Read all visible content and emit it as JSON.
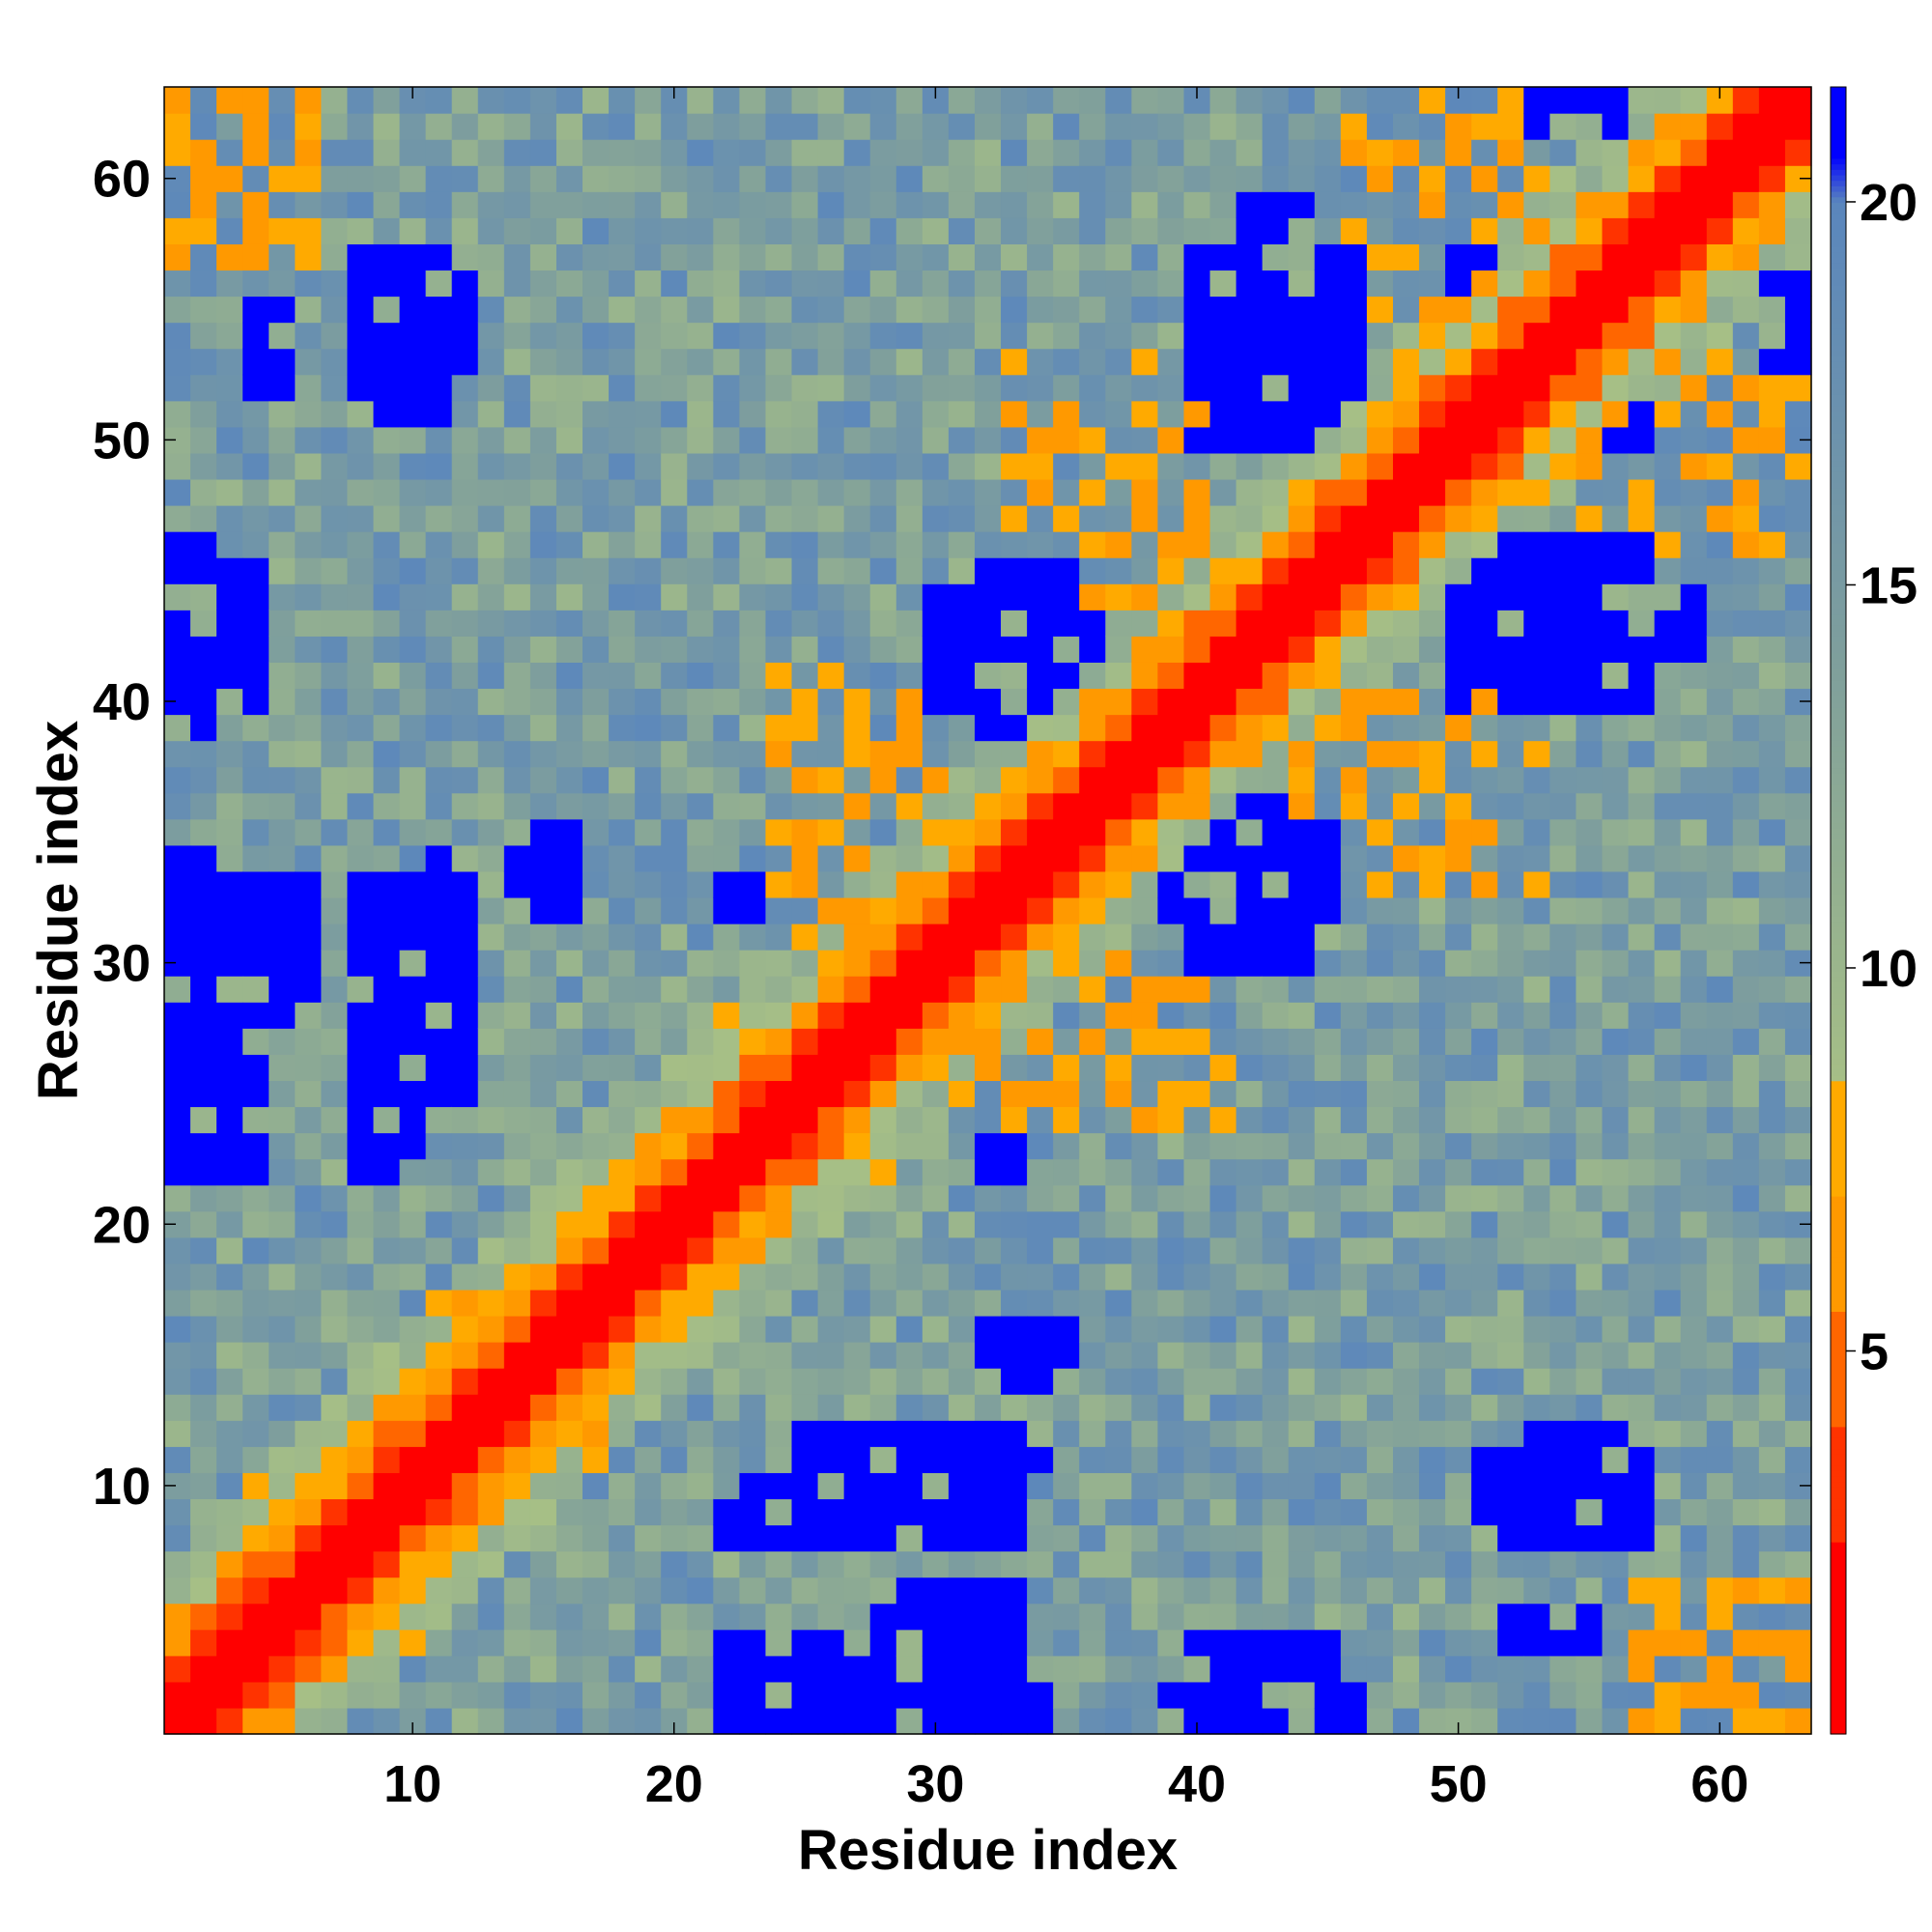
{
  "chart_data": {
    "type": "heatmap",
    "title": "",
    "xlabel": "Residue index",
    "ylabel": "Residue index",
    "n": 63,
    "xlim": [
      0.5,
      63.5
    ],
    "ylim": [
      0.5,
      63.5
    ],
    "x_ticks": [
      10,
      20,
      30,
      40,
      50,
      60
    ],
    "y_ticks": [
      10,
      20,
      30,
      40,
      50,
      60
    ],
    "x_tick_labels": [
      "10",
      "20",
      "30",
      "40",
      "50",
      "60"
    ],
    "y_tick_labels": [
      "10",
      "20",
      "30",
      "40",
      "50",
      "60"
    ],
    "grid": false,
    "colorbar": {
      "placement": "right",
      "range": [
        0,
        21.5
      ],
      "ticks": [
        5,
        10,
        15,
        20
      ],
      "tick_labels": [
        "5",
        "10",
        "15",
        "20"
      ],
      "discrete_levels": [
        {
          "max": 2.5,
          "color": "#ff0000"
        },
        {
          "max": 4.0,
          "color": "#ff3300"
        },
        {
          "max": 5.5,
          "color": "#ff6600"
        },
        {
          "max": 7.0,
          "color": "#ff9900"
        },
        {
          "max": 8.5,
          "color": "#ffaa00"
        }
      ],
      "continuous_stops": [
        {
          "value": 8.5,
          "color": "#a6bf86"
        },
        {
          "value": 14.0,
          "color": "#7f9f9c"
        },
        {
          "value": 20.0,
          "color": "#5a86bd"
        },
        {
          "value": 20.6,
          "color": "#0000ff"
        }
      ]
    },
    "values_description_rows": "matrix[i][j] is the distance between residue i+1 and residue j+1; symmetric",
    "blue_regions": [
      {
        "x": [
          1,
          4
        ],
        "y": [
          22,
          32
        ]
      },
      {
        "x": [
          5,
          6
        ],
        "y": [
          28,
          33
        ]
      },
      {
        "x": [
          8,
          9
        ],
        "y": [
          22,
          33
        ]
      },
      {
        "x": [
          8,
          12
        ],
        "y": [
          53,
          57
        ]
      },
      {
        "x": [
          1,
          4
        ],
        "y": [
          40,
          45
        ]
      },
      {
        "x": [
          22,
          30
        ],
        "y": [
          1,
          1
        ]
      },
      {
        "x": [
          23,
          33
        ],
        "y": [
          8,
          10
        ]
      },
      {
        "x": [
          25,
          34
        ],
        "y": [
          11,
          12
        ]
      },
      {
        "x": [
          29,
          33
        ],
        "y": [
          3,
          5
        ]
      },
      {
        "x": [
          29,
          34
        ],
        "y": [
          1,
          2
        ]
      },
      {
        "x": [
          32,
          35
        ],
        "y": [
          14,
          16
        ]
      },
      {
        "x": [
          32,
          33
        ],
        "y": [
          22,
          23
        ]
      },
      {
        "x": [
          33,
          37
        ],
        "y": [
          32,
          34
        ]
      },
      {
        "x": [
          32,
          35
        ],
        "y": [
          39,
          45
        ]
      },
      {
        "x": [
          40,
          44
        ],
        "y": [
          30,
          36
        ]
      },
      {
        "x": [
          40,
          45
        ],
        "y": [
          32,
          34
        ]
      },
      {
        "x": [
          39,
          46
        ],
        "y": [
          1,
          2
        ]
      },
      {
        "x": [
          40,
          46
        ],
        "y": [
          50,
          57
        ]
      },
      {
        "x": [
          42,
          44
        ],
        "y": [
          57,
          59
        ]
      },
      {
        "x": [
          52,
          57
        ],
        "y": [
          40,
          46
        ]
      },
      {
        "x": [
          51,
          55
        ],
        "y": [
          8,
          11
        ]
      },
      {
        "x": [
          52,
          55
        ],
        "y": [
          4,
          5
        ]
      },
      {
        "x": [
          53,
          56
        ],
        "y": [
          62,
          63
        ]
      },
      {
        "x": [
          50,
          54
        ],
        "y": [
          56,
          57
        ]
      }
    ],
    "orange_regions": [
      {
        "x": [
          12,
          13
        ],
        "y": [
          12,
          16
        ]
      },
      {
        "x": [
          16,
          17
        ],
        "y": [
          12,
          14
        ]
      },
      {
        "x": [
          24,
          30
        ],
        "y": [
          31,
          41
        ]
      },
      {
        "x": [
          31,
          38
        ],
        "y": [
          24,
          30
        ]
      },
      {
        "x": [
          33,
          40
        ],
        "y": [
          44,
          53
        ]
      },
      {
        "x": [
          44,
          53
        ],
        "y": [
          33,
          40
        ]
      },
      {
        "x": [
          46,
          53
        ],
        "y": [
          55,
          63
        ]
      },
      {
        "x": [
          55,
          63
        ],
        "y": [
          46,
          53
        ]
      },
      {
        "x": [
          1,
          6
        ],
        "y": [
          56,
          63
        ]
      },
      {
        "x": [
          56,
          63
        ],
        "y": [
          1,
          6
        ]
      }
    ]
  }
}
